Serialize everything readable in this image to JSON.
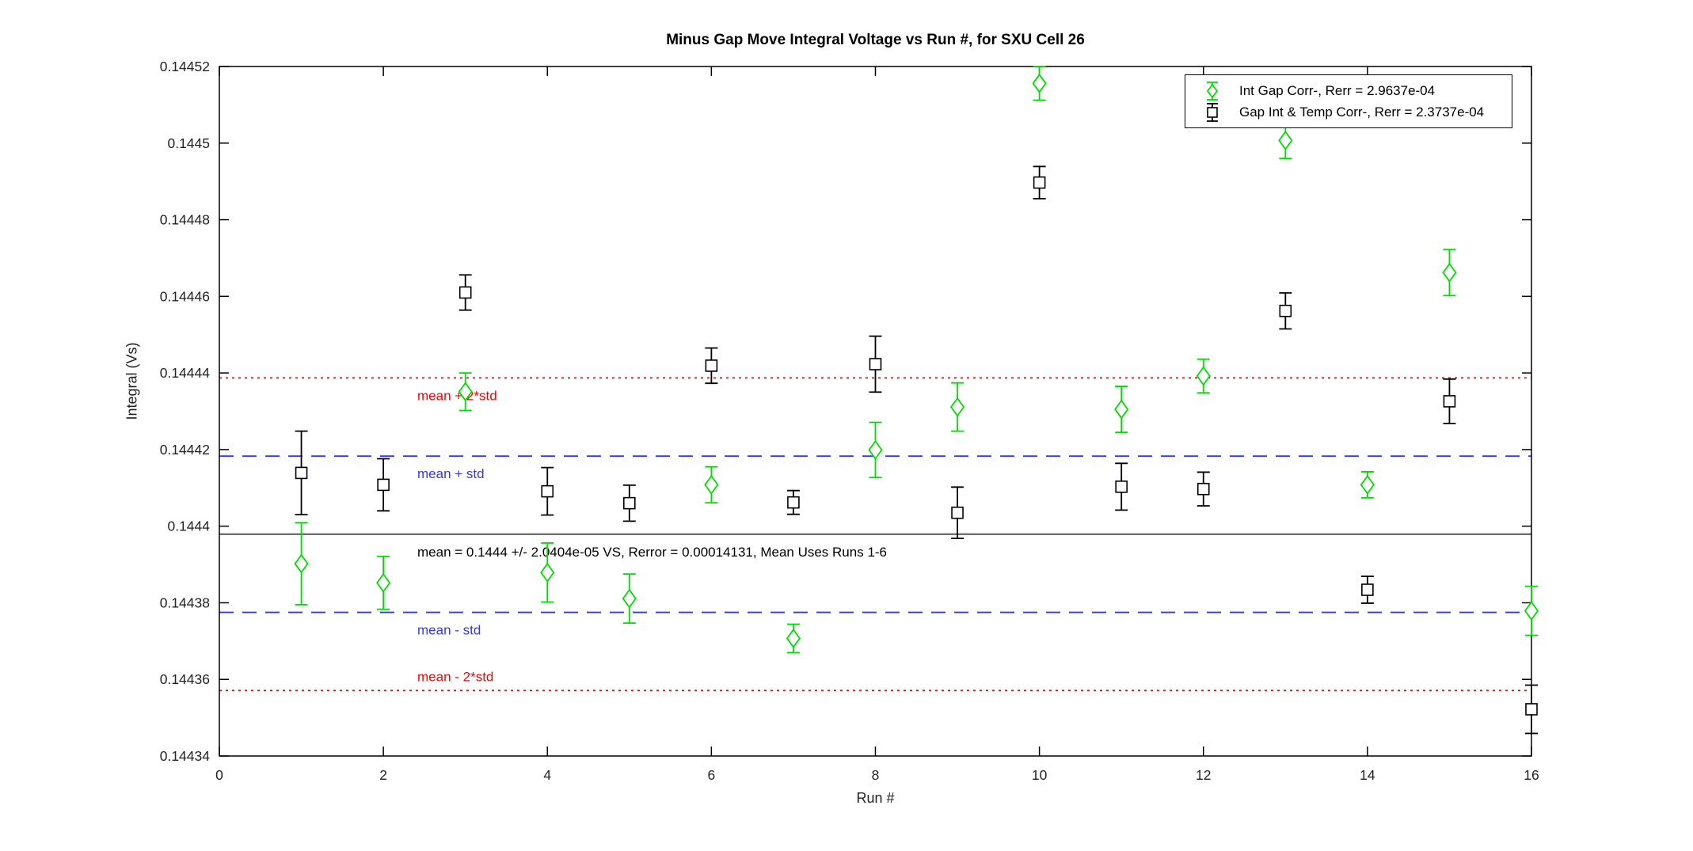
{
  "chart_data": {
    "type": "scatter",
    "title": "Minus Gap Move Integral Voltage vs Run #, for SXU Cell 26",
    "xlabel": "Run #",
    "ylabel": "Integral (Vs)",
    "xlim": [
      0,
      16
    ],
    "ylim": [
      0.14434,
      0.14452
    ],
    "grid": false,
    "legend_position": "top-right",
    "background_color": "#ffffff",
    "axis_color": "#000000",
    "xticks": [
      0,
      2,
      4,
      6,
      8,
      10,
      12,
      14,
      16
    ],
    "xtick_labels": [
      "0",
      "2",
      "4",
      "6",
      "8",
      "10",
      "12",
      "14",
      "16"
    ],
    "yticks": [
      0.14434,
      0.14436,
      0.14438,
      0.1444,
      0.14442,
      0.14444,
      0.14446,
      0.14448,
      0.1445,
      0.14452
    ],
    "ytick_labels": [
      "0.14434",
      "0.14436",
      "0.14438",
      "0.1444",
      "0.14442",
      "0.14444",
      "0.14446",
      "0.14448",
      "0.1445",
      "0.14452"
    ],
    "x": [
      1,
      2,
      3,
      4,
      5,
      6,
      7,
      8,
      9,
      10,
      11,
      12,
      13,
      14,
      15,
      16
    ],
    "series": [
      {
        "name": "Int Gap Corr-, Rerr = 2.9637e-04",
        "marker": "diamond",
        "color": "#00dd00",
        "y": [
          0.1443902,
          0.1443852,
          0.1444351,
          0.1443879,
          0.1443811,
          0.1444108,
          0.1443707,
          0.1444199,
          0.1444311,
          0.1445156,
          0.1444305,
          0.1444392,
          0.1445007,
          0.1444108,
          0.1444662,
          0.1443779
        ],
        "yerr": [
          1.07e-05,
          6.9e-06,
          4.9e-06,
          7.7e-06,
          6.4e-06,
          4.7e-06,
          3.7e-06,
          7.2e-06,
          6.3e-06,
          4.4e-06,
          6e-06,
          4.4e-06,
          4.7e-06,
          3.4e-06,
          6e-06,
          6.4e-06
        ]
      },
      {
        "name": "Gap Int & Temp Corr-, Rerr = 2.3737e-04",
        "marker": "square",
        "color": "#000000",
        "y": [
          0.1444139,
          0.1444108,
          0.144461,
          0.1444091,
          0.144406,
          0.1444419,
          0.1444062,
          0.1444423,
          0.1444035,
          0.1444897,
          0.1444103,
          0.1444097,
          0.1444562,
          0.1443834,
          0.1444326,
          0.1443522
        ],
        "yerr": [
          1.09e-05,
          6.8e-06,
          4.6e-06,
          6.2e-06,
          4.7e-06,
          4.6e-06,
          3.1e-06,
          7.3e-06,
          6.7e-06,
          4.2e-06,
          6.1e-06,
          4.4e-06,
          4.7e-06,
          3.5e-06,
          5.8e-06,
          6.3e-06
        ]
      }
    ],
    "reference_lines": [
      {
        "label": "mean + 2*std",
        "value": 0.1444387,
        "color": "#ff0000",
        "style": "dotted",
        "label_above": false
      },
      {
        "label": "mean + std",
        "value": 0.1444183,
        "color": "#3333ff",
        "style": "dashed",
        "label_above": false
      },
      {
        "label": "mean = 0.1444 +/- 2.0404e-05 VS, Rerror = 0.00014131, Mean Uses Runs 1-6",
        "value": 0.1443979,
        "color": "#707070",
        "label_color": "#000000",
        "style": "solid",
        "label_above": false
      },
      {
        "label": "mean - std",
        "value": 0.1443775,
        "color": "#3333ff",
        "style": "dashed",
        "label_above": false
      },
      {
        "label": "mean - 2*std",
        "value": 0.1443571,
        "color": "#ff0000",
        "style": "dotted",
        "label_above": true
      }
    ],
    "stats": {
      "mean": "0.1444",
      "std": "2.0404e-05",
      "rerror": "0.00014131",
      "mean_uses_runs": "1-6",
      "series_rerr": [
        "2.9637e-04",
        "2.3737e-04"
      ]
    }
  }
}
